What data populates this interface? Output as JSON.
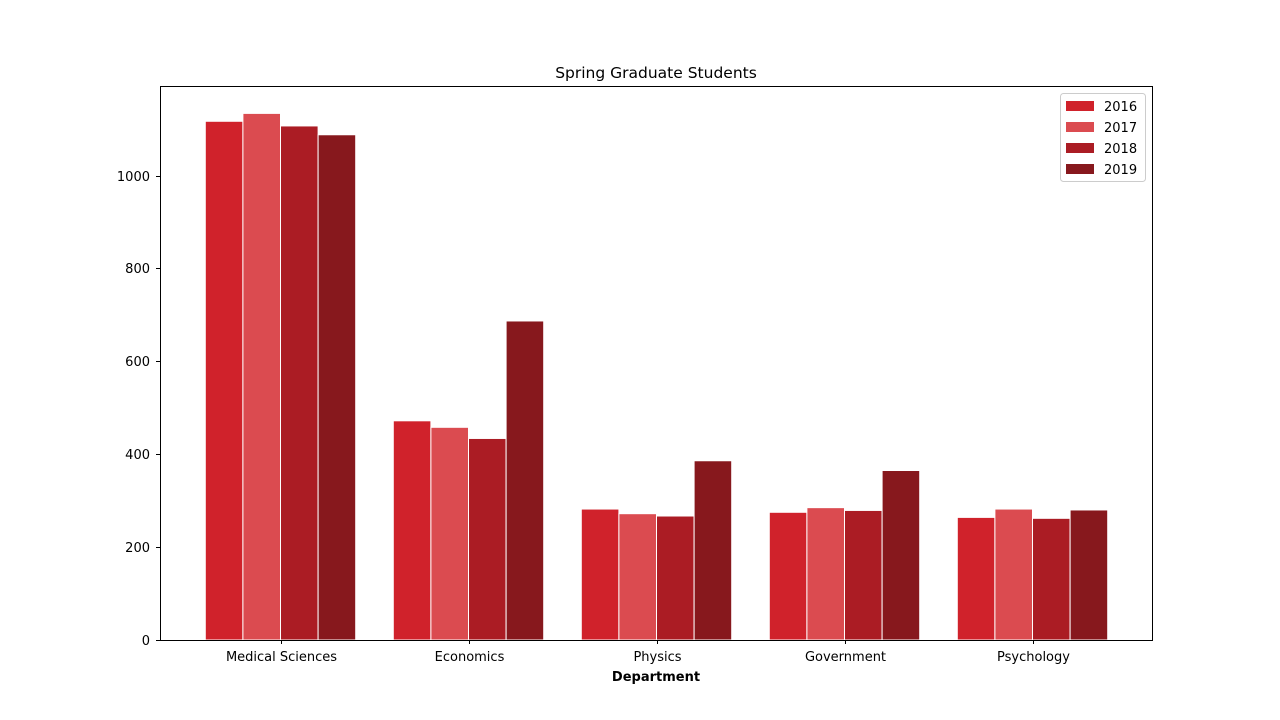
{
  "chart_data": {
    "type": "bar",
    "title": "Spring Graduate Students",
    "xlabel": "Department",
    "ylabel": "",
    "categories": [
      "Medical Sciences",
      "Economics",
      "Physics",
      "Government",
      "Psychology"
    ],
    "series": [
      {
        "name": "2016",
        "color": "#d0222b",
        "values": [
          1117,
          472,
          282,
          275,
          264
        ]
      },
      {
        "name": "2017",
        "color": "#db4b50",
        "values": [
          1134,
          458,
          272,
          285,
          282
        ]
      },
      {
        "name": "2018",
        "color": "#ab1c24",
        "values": [
          1107,
          434,
          267,
          279,
          262
        ]
      },
      {
        "name": "2019",
        "color": "#87181d",
        "values": [
          1088,
          687,
          386,
          365,
          280
        ]
      }
    ],
    "ylim": [
      0,
      1193
    ],
    "yticks": [
      0,
      200,
      400,
      600,
      800,
      1000
    ],
    "legend": "top-right",
    "grid": false
  }
}
